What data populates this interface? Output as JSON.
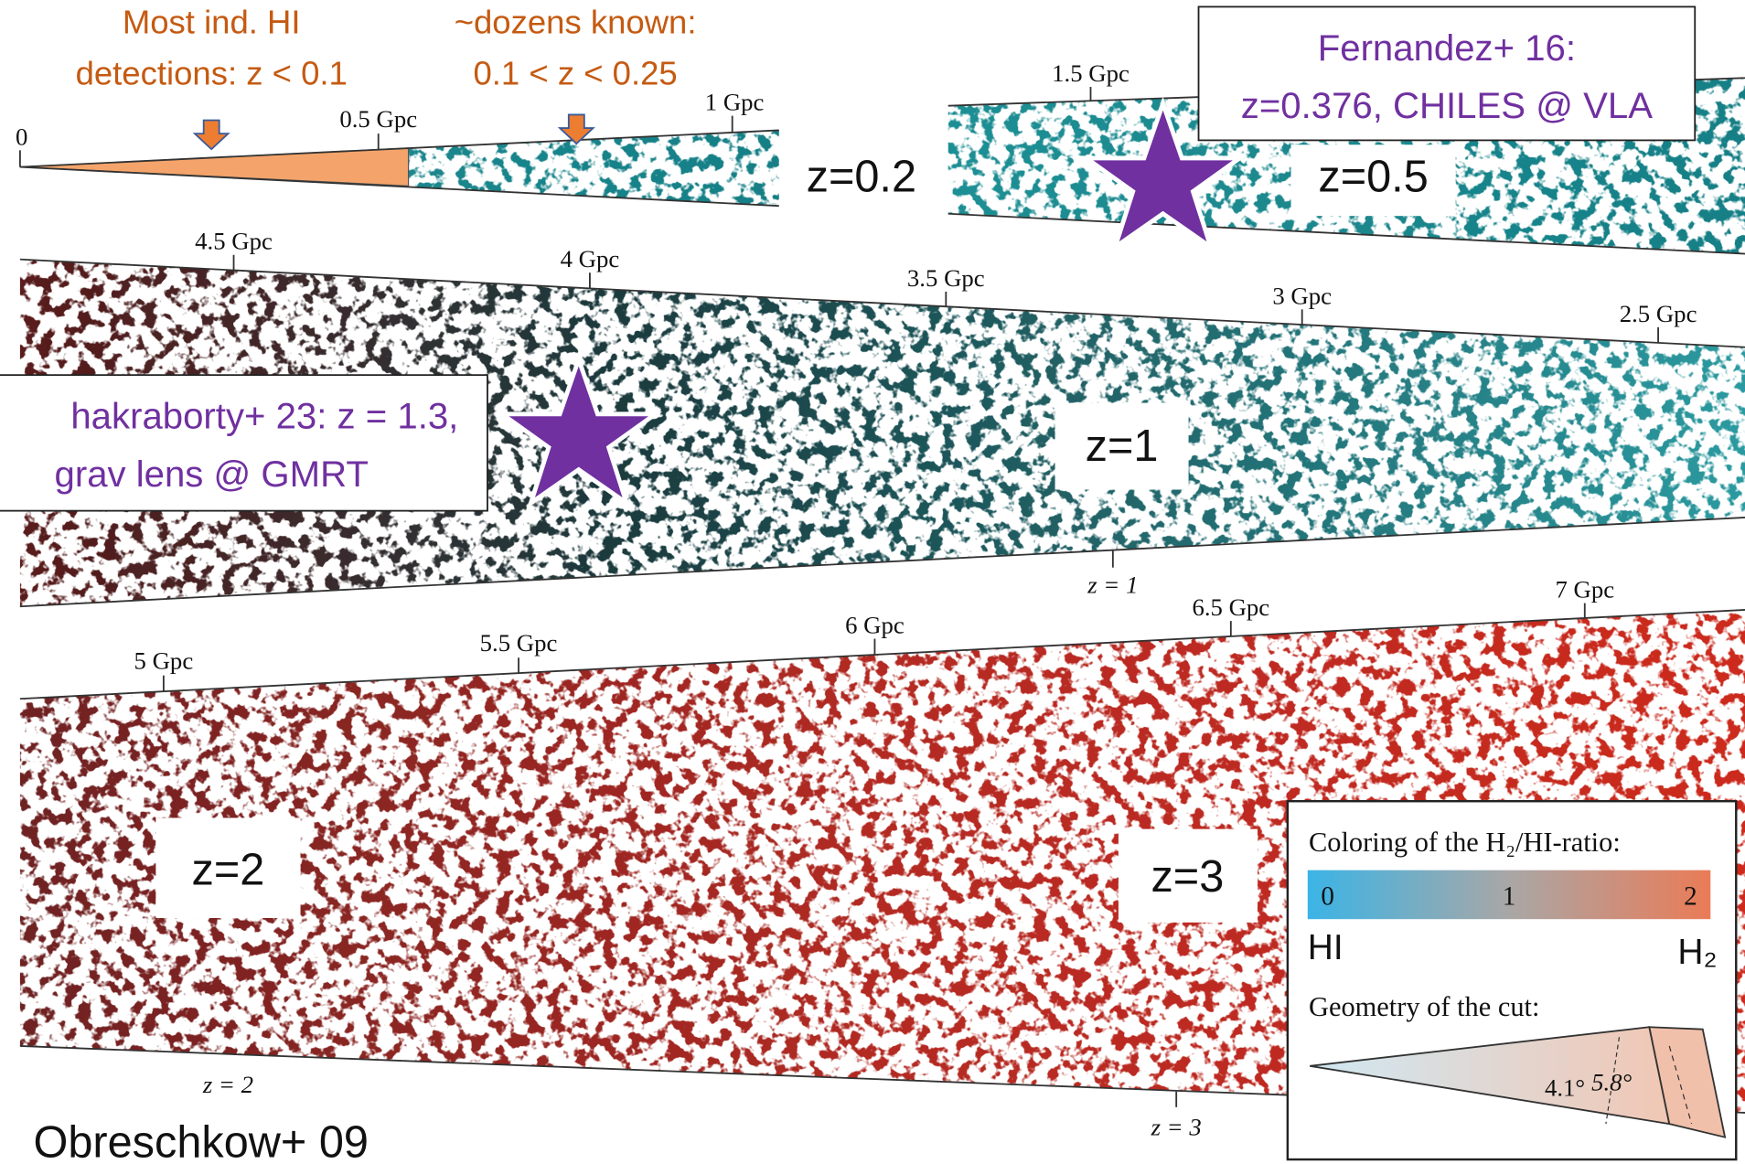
{
  "callouts": [
    [
      "Most ind. HI",
      "detections: z < 0.1"
    ],
    [
      "~dozens known:",
      "0.1 < z < 0.25"
    ],
    [
      "Fernandez+ 16:",
      "z=0.376, CHILES @ VLA"
    ],
    [
      "hakraborty+ 23: z = 1.3,",
      "grav lens @ GMRT"
    ]
  ],
  "distance_ticks": [
    "0",
    "0.5 Gpc",
    "1 Gpc",
    "1.5 Gpc",
    "4.5 Gpc",
    "4 Gpc",
    "3.5 Gpc",
    "3 Gpc",
    "2.5 Gpc",
    "5 Gpc",
    "5.5 Gpc",
    "6 Gpc",
    "6.5 Gpc",
    "7 Gpc"
  ],
  "redshift_ticks": [
    "z = 1",
    "z = 2",
    "z = 3"
  ],
  "redshift_boxes": [
    "z=0.2",
    "z=0.5",
    "z=1",
    "z=2",
    "z=3"
  ],
  "legend": {
    "title": "Coloring of the H₂/HI-ratio:",
    "scale": [
      "0",
      "1",
      "2"
    ],
    "left": "HI",
    "right": "H₂",
    "geometry_title": "Geometry of the cut:",
    "angles": [
      "4.1°",
      "5.8°"
    ]
  },
  "credit": "Obreschkow+ 09"
}
